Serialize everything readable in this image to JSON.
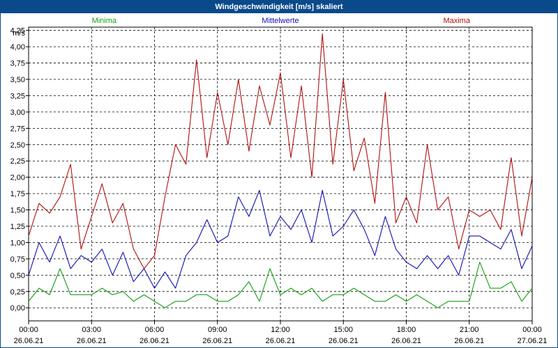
{
  "window": {
    "title": "Windgeschwindigkeit [m/s] skaliert"
  },
  "chart_data": {
    "type": "line",
    "title": "Windgeschwindigkeit [m/s] skaliert",
    "ylabel": "m/s",
    "xlabel": "",
    "ylim": [
      -0.2,
      4.3
    ],
    "xlim": [
      0,
      24
    ],
    "grid": true,
    "y_ticks": [
      0,
      0.25,
      0.5,
      0.75,
      1.0,
      1.25,
      1.5,
      1.75,
      2.0,
      2.25,
      2.5,
      2.75,
      3.0,
      3.25,
      3.5,
      3.75,
      4.0,
      4.25
    ],
    "y_tick_labels": [
      "0,00",
      "0,25",
      "0,50",
      "0,75",
      "1,00",
      "1,25",
      "1,50",
      "1,75",
      "2,00",
      "2,25",
      "2,50",
      "2,75",
      "3,00",
      "3,25",
      "3,50",
      "3,75",
      "4,00",
      "4,25"
    ],
    "x_ticks": [
      {
        "hour": 0,
        "time": "00:00",
        "date": "26.06.21"
      },
      {
        "hour": 3,
        "time": "03:00",
        "date": "26.06.21"
      },
      {
        "hour": 6,
        "time": "06:00",
        "date": "26.06.21"
      },
      {
        "hour": 9,
        "time": "09:00",
        "date": "26.06.21"
      },
      {
        "hour": 12,
        "time": "12:00",
        "date": "26.06.21"
      },
      {
        "hour": 15,
        "time": "15:00",
        "date": "26.06.21"
      },
      {
        "hour": 18,
        "time": "18:00",
        "date": "26.06.21"
      },
      {
        "hour": 21,
        "time": "21:00",
        "date": "26.06.21"
      },
      {
        "hour": 24,
        "time": "00:00",
        "date": "27.06.21"
      }
    ],
    "legend_position": "top",
    "series": [
      {
        "name": "Minima",
        "color": "#12a012",
        "x": [
          0,
          0.5,
          1,
          1.5,
          2,
          2.5,
          3,
          3.5,
          4,
          4.5,
          5,
          5.5,
          6,
          6.5,
          7,
          7.5,
          8,
          8.5,
          9,
          9.5,
          10,
          10.5,
          11,
          11.5,
          12,
          12.5,
          13,
          13.5,
          14,
          14.5,
          15,
          15.5,
          16,
          16.5,
          17,
          17.5,
          18,
          18.5,
          19,
          19.5,
          20,
          20.5,
          21,
          21.5,
          22,
          22.5,
          23,
          23.5,
          24
        ],
        "values": [
          0.1,
          0.3,
          0.2,
          0.6,
          0.2,
          0.2,
          0.2,
          0.3,
          0.2,
          0.25,
          0.1,
          0.2,
          0.1,
          0.0,
          0.1,
          0.1,
          0.2,
          0.2,
          0.1,
          0.1,
          0.2,
          0.4,
          0.1,
          0.6,
          0.2,
          0.3,
          0.2,
          0.3,
          0.1,
          0.2,
          0.2,
          0.3,
          0.2,
          0.1,
          0.1,
          0.2,
          0.1,
          0.2,
          0.1,
          0.0,
          0.1,
          0.1,
          0.1,
          0.7,
          0.3,
          0.3,
          0.4,
          0.1,
          0.3
        ]
      },
      {
        "name": "Mittelwerte",
        "color": "#1010b0",
        "x": [
          0,
          0.5,
          1,
          1.5,
          2,
          2.5,
          3,
          3.5,
          4,
          4.5,
          5,
          5.5,
          6,
          6.5,
          7,
          7.5,
          8,
          8.5,
          9,
          9.5,
          10,
          10.5,
          11,
          11.5,
          12,
          12.5,
          13,
          13.5,
          14,
          14.5,
          15,
          15.5,
          16,
          16.5,
          17,
          17.5,
          18,
          18.5,
          19,
          19.5,
          20,
          20.5,
          21,
          21.5,
          22,
          22.5,
          23,
          23.5,
          24
        ],
        "values": [
          0.5,
          1.0,
          0.7,
          1.1,
          0.6,
          0.8,
          0.7,
          0.9,
          0.5,
          0.85,
          0.4,
          0.6,
          0.3,
          0.55,
          0.3,
          0.8,
          1.0,
          1.35,
          1.0,
          1.1,
          1.7,
          1.4,
          1.8,
          1.1,
          1.4,
          1.2,
          1.5,
          1.0,
          1.8,
          1.1,
          1.25,
          1.5,
          1.2,
          0.8,
          1.4,
          0.9,
          0.7,
          0.6,
          0.8,
          0.6,
          0.8,
          0.5,
          1.1,
          1.1,
          1.0,
          0.9,
          1.2,
          0.6,
          0.95
        ]
      },
      {
        "name": "Maxima",
        "color": "#b01010",
        "x": [
          0,
          0.5,
          1,
          1.5,
          2,
          2.5,
          3,
          3.5,
          4,
          4.5,
          5,
          5.5,
          6,
          6.5,
          7,
          7.5,
          8,
          8.5,
          9,
          9.5,
          10,
          10.5,
          11,
          11.5,
          12,
          12.5,
          13,
          13.5,
          14,
          14.5,
          15,
          15.5,
          16,
          16.5,
          17,
          17.5,
          18,
          18.5,
          19,
          19.5,
          20,
          20.5,
          21,
          21.5,
          22,
          22.5,
          23,
          23.5,
          24
        ],
        "values": [
          1.1,
          1.6,
          1.45,
          1.7,
          2.2,
          0.9,
          1.4,
          1.9,
          1.3,
          1.6,
          0.9,
          0.6,
          0.8,
          1.7,
          2.5,
          2.2,
          3.8,
          2.3,
          3.3,
          2.5,
          3.5,
          2.4,
          3.4,
          2.8,
          3.6,
          2.3,
          3.4,
          2.0,
          4.2,
          2.2,
          3.5,
          2.1,
          2.6,
          1.6,
          3.3,
          1.3,
          1.7,
          1.3,
          2.5,
          1.5,
          1.7,
          0.9,
          1.5,
          1.4,
          1.5,
          1.2,
          2.3,
          1.1,
          2.0
        ]
      }
    ]
  }
}
